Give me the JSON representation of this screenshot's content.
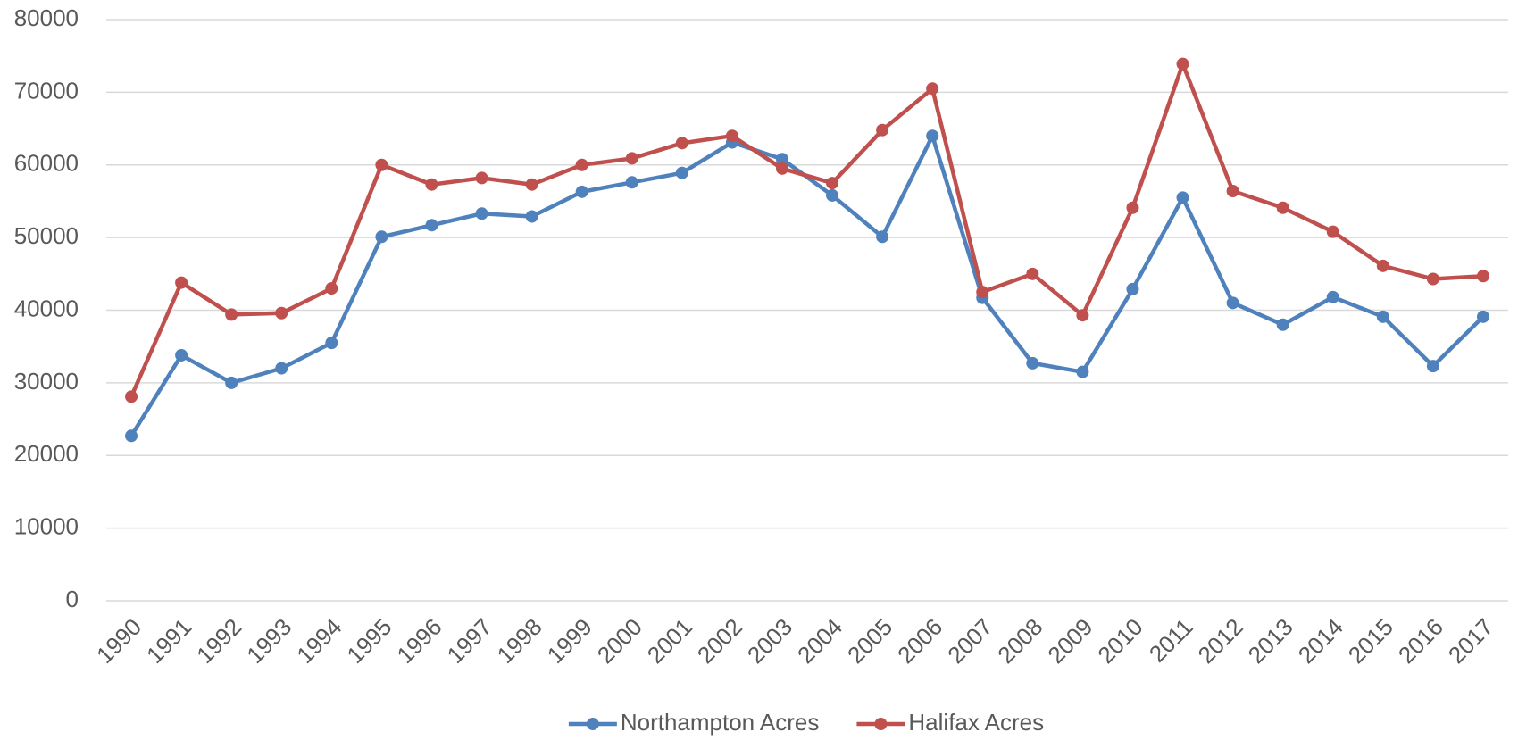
{
  "chart_data": {
    "type": "line",
    "categories": [
      "1990",
      "1991",
      "1992",
      "1993",
      "1994",
      "1995",
      "1996",
      "1997",
      "1998",
      "1999",
      "2000",
      "2001",
      "2002",
      "2003",
      "2004",
      "2005",
      "2006",
      "2007",
      "2008",
      "2009",
      "2010",
      "2011",
      "2012",
      "2013",
      "2014",
      "2015",
      "2016",
      "2017"
    ],
    "series": [
      {
        "name": "Northampton Acres",
        "color": "#4f81bd",
        "values": [
          22700,
          33800,
          30000,
          32000,
          35500,
          50100,
          51700,
          53300,
          52900,
          56300,
          57600,
          58900,
          63100,
          60800,
          55800,
          50100,
          64000,
          41700,
          32700,
          31500,
          42900,
          55500,
          41000,
          38000,
          41800,
          39100,
          32300,
          39100
        ]
      },
      {
        "name": "Halifax Acres",
        "color": "#c0504d",
        "values": [
          28100,
          43800,
          39400,
          39600,
          43000,
          60000,
          57300,
          58200,
          57300,
          60000,
          60900,
          63000,
          64000,
          59500,
          57500,
          64800,
          70500,
          42500,
          45000,
          39300,
          54100,
          73900,
          56400,
          54100,
          50800,
          46100,
          44300,
          44700
        ]
      }
    ],
    "ylim": [
      0,
      80000
    ],
    "yticks": [
      0,
      10000,
      20000,
      30000,
      40000,
      50000,
      60000,
      70000,
      80000
    ],
    "grid": true,
    "legend": "bottom"
  }
}
